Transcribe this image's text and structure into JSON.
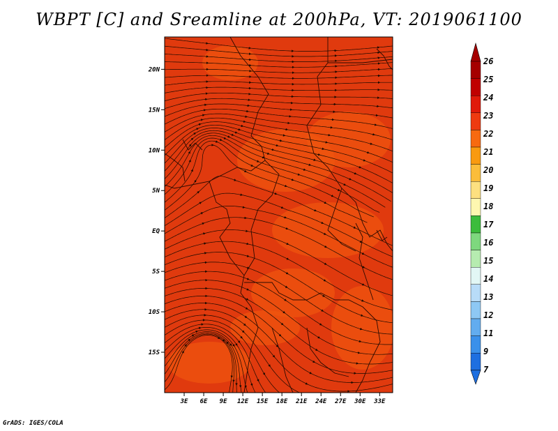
{
  "title": "WBPT [C] and Sreamline at 200hPa, VT: 2019061100",
  "credit": "GrADS: IGES/COLA",
  "map": {
    "lon_range": [
      0,
      35
    ],
    "lat_range": [
      -20,
      24
    ],
    "lat_ticks": [
      {
        "value": 20,
        "label": "20N"
      },
      {
        "value": 15,
        "label": "15N"
      },
      {
        "value": 10,
        "label": "10N"
      },
      {
        "value": 5,
        "label": "5N"
      },
      {
        "value": 0,
        "label": "EQ"
      },
      {
        "value": -5,
        "label": "5S"
      },
      {
        "value": -10,
        "label": "10S"
      },
      {
        "value": -15,
        "label": "15S"
      }
    ],
    "lon_ticks": [
      {
        "value": 3,
        "label": "3E"
      },
      {
        "value": 6,
        "label": "6E"
      },
      {
        "value": 9,
        "label": "9E"
      },
      {
        "value": 12,
        "label": "12E"
      },
      {
        "value": 15,
        "label": "15E"
      },
      {
        "value": 18,
        "label": "18E"
      },
      {
        "value": 21,
        "label": "21E"
      },
      {
        "value": 24,
        "label": "24E"
      },
      {
        "value": 27,
        "label": "27E"
      },
      {
        "value": 30,
        "label": "30E"
      },
      {
        "value": 33,
        "label": "33E"
      }
    ],
    "fill_color": "#e03a0e",
    "patch_color": "#f0560e",
    "streamline_color": "#1a0a00",
    "border_color": "#2a0a00"
  },
  "colorbar": {
    "levels": [
      "26",
      "25",
      "24",
      "23",
      "22",
      "21",
      "20",
      "19",
      "18",
      "17",
      "16",
      "15",
      "14",
      "13",
      "12",
      "11",
      "9",
      "7"
    ],
    "colors": [
      "#a50000",
      "#c00000",
      "#e01a0a",
      "#ee3a10",
      "#f76a10",
      "#f99a10",
      "#fbbd3a",
      "#fde080",
      "#fef7b0",
      "#3cbc3c",
      "#7ed87e",
      "#b6ecb0",
      "#e2f7f5",
      "#b8dcf8",
      "#8ec8f4",
      "#62acef",
      "#3a90ea",
      "#1e6fe0"
    ],
    "top_arrow_color": "#a50000",
    "bottom_arrow_color": "#1e6fe0"
  }
}
